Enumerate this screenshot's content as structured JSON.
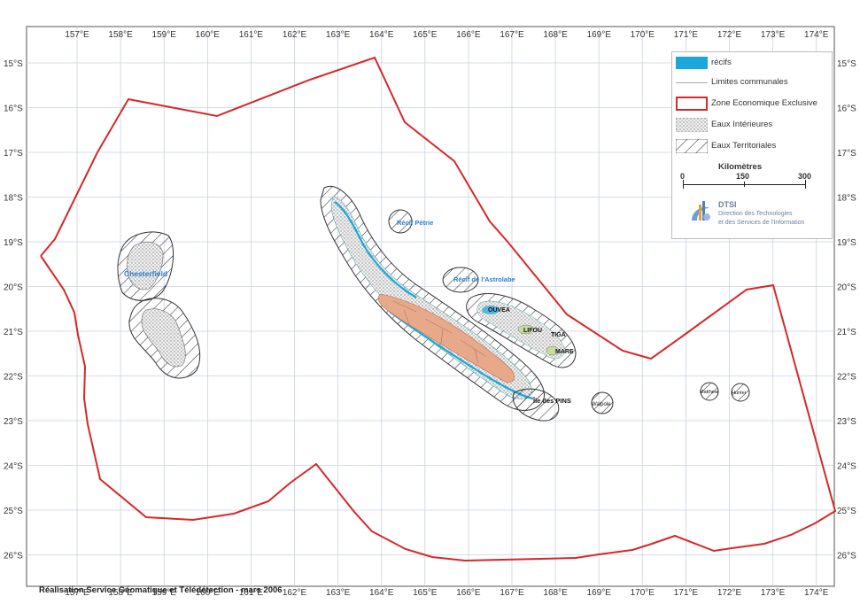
{
  "colors": {
    "zee_border": "#d62828",
    "reef_fill": "#1aa7dc",
    "land_fill": "#e8a98a",
    "grid": "#c9d2e0",
    "hatch": "#333333",
    "label_blue": "#2a7fd4"
  },
  "axes": {
    "lon_labels": [
      "157°E",
      "158°E",
      "159°E",
      "160°E",
      "161°E",
      "162°E",
      "163°E",
      "164°E",
      "165°E",
      "166°E",
      "167°E",
      "168°E",
      "169°E",
      "170°E",
      "171°E",
      "172°E",
      "173°E",
      "174°E"
    ],
    "lat_labels": [
      "15°S",
      "16°S",
      "17°S",
      "18°S",
      "19°S",
      "20°S",
      "21°S",
      "22°S",
      "23°S",
      "24°S",
      "25°S",
      "26°S"
    ]
  },
  "legend": {
    "reefs": "récifs",
    "communes": "Limites communales",
    "zee": "Zone Economique Exclusive",
    "inner_waters": "Eaux Intérieures",
    "territorial_waters": "Eaux Territoriales",
    "scale_title": "Kilomètres",
    "scale_ticks": [
      "0",
      "150",
      "300"
    ],
    "logo_acronym": "DTSI",
    "logo_line1": "Direction des Technologies",
    "logo_line2": "et des Services de l'Information"
  },
  "places": {
    "chesterfield": "Chesterfield",
    "recif_petrie": "Récif Pétrie",
    "recif_astrolabe": "Récif de l'Astrolabe",
    "ouvea": "OUVEA",
    "lifou": "LIFOU",
    "tiga": "TIGA",
    "mare": "MARE",
    "ile_des_pins": "Île des PINS",
    "walpole": "Walpole",
    "matthew": "Matthew",
    "hunter": "Hunter"
  },
  "credit": "Réalisation Service Géomatique et Télédétection - mars 2006"
}
